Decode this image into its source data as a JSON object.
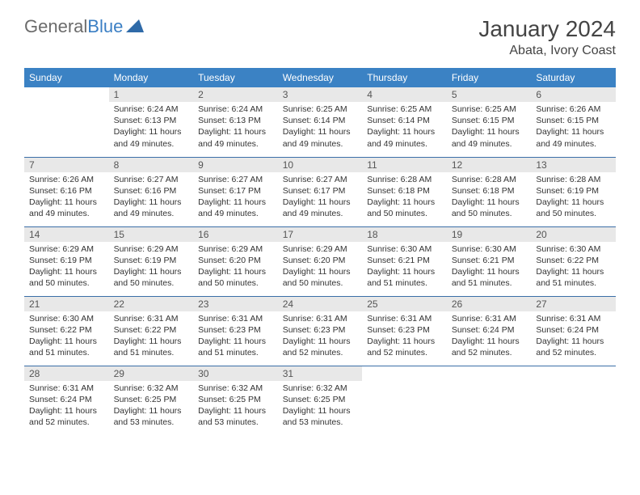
{
  "logo": {
    "part1": "General",
    "part2": "Blue"
  },
  "title": "January 2024",
  "location": "Abata, Ivory Coast",
  "header_bg": "#3b82c4",
  "header_fg": "#ffffff",
  "daynum_bg": "#e8e8e8",
  "border_color": "#3b6fa8",
  "dayNames": [
    "Sunday",
    "Monday",
    "Tuesday",
    "Wednesday",
    "Thursday",
    "Friday",
    "Saturday"
  ],
  "weeks": [
    [
      null,
      {
        "n": "1",
        "sunrise": "6:24 AM",
        "sunset": "6:13 PM",
        "daylight": "11 hours and 49 minutes."
      },
      {
        "n": "2",
        "sunrise": "6:24 AM",
        "sunset": "6:13 PM",
        "daylight": "11 hours and 49 minutes."
      },
      {
        "n": "3",
        "sunrise": "6:25 AM",
        "sunset": "6:14 PM",
        "daylight": "11 hours and 49 minutes."
      },
      {
        "n": "4",
        "sunrise": "6:25 AM",
        "sunset": "6:14 PM",
        "daylight": "11 hours and 49 minutes."
      },
      {
        "n": "5",
        "sunrise": "6:25 AM",
        "sunset": "6:15 PM",
        "daylight": "11 hours and 49 minutes."
      },
      {
        "n": "6",
        "sunrise": "6:26 AM",
        "sunset": "6:15 PM",
        "daylight": "11 hours and 49 minutes."
      }
    ],
    [
      {
        "n": "7",
        "sunrise": "6:26 AM",
        "sunset": "6:16 PM",
        "daylight": "11 hours and 49 minutes."
      },
      {
        "n": "8",
        "sunrise": "6:27 AM",
        "sunset": "6:16 PM",
        "daylight": "11 hours and 49 minutes."
      },
      {
        "n": "9",
        "sunrise": "6:27 AM",
        "sunset": "6:17 PM",
        "daylight": "11 hours and 49 minutes."
      },
      {
        "n": "10",
        "sunrise": "6:27 AM",
        "sunset": "6:17 PM",
        "daylight": "11 hours and 49 minutes."
      },
      {
        "n": "11",
        "sunrise": "6:28 AM",
        "sunset": "6:18 PM",
        "daylight": "11 hours and 50 minutes."
      },
      {
        "n": "12",
        "sunrise": "6:28 AM",
        "sunset": "6:18 PM",
        "daylight": "11 hours and 50 minutes."
      },
      {
        "n": "13",
        "sunrise": "6:28 AM",
        "sunset": "6:19 PM",
        "daylight": "11 hours and 50 minutes."
      }
    ],
    [
      {
        "n": "14",
        "sunrise": "6:29 AM",
        "sunset": "6:19 PM",
        "daylight": "11 hours and 50 minutes."
      },
      {
        "n": "15",
        "sunrise": "6:29 AM",
        "sunset": "6:19 PM",
        "daylight": "11 hours and 50 minutes."
      },
      {
        "n": "16",
        "sunrise": "6:29 AM",
        "sunset": "6:20 PM",
        "daylight": "11 hours and 50 minutes."
      },
      {
        "n": "17",
        "sunrise": "6:29 AM",
        "sunset": "6:20 PM",
        "daylight": "11 hours and 50 minutes."
      },
      {
        "n": "18",
        "sunrise": "6:30 AM",
        "sunset": "6:21 PM",
        "daylight": "11 hours and 51 minutes."
      },
      {
        "n": "19",
        "sunrise": "6:30 AM",
        "sunset": "6:21 PM",
        "daylight": "11 hours and 51 minutes."
      },
      {
        "n": "20",
        "sunrise": "6:30 AM",
        "sunset": "6:22 PM",
        "daylight": "11 hours and 51 minutes."
      }
    ],
    [
      {
        "n": "21",
        "sunrise": "6:30 AM",
        "sunset": "6:22 PM",
        "daylight": "11 hours and 51 minutes."
      },
      {
        "n": "22",
        "sunrise": "6:31 AM",
        "sunset": "6:22 PM",
        "daylight": "11 hours and 51 minutes."
      },
      {
        "n": "23",
        "sunrise": "6:31 AM",
        "sunset": "6:23 PM",
        "daylight": "11 hours and 51 minutes."
      },
      {
        "n": "24",
        "sunrise": "6:31 AM",
        "sunset": "6:23 PM",
        "daylight": "11 hours and 52 minutes."
      },
      {
        "n": "25",
        "sunrise": "6:31 AM",
        "sunset": "6:23 PM",
        "daylight": "11 hours and 52 minutes."
      },
      {
        "n": "26",
        "sunrise": "6:31 AM",
        "sunset": "6:24 PM",
        "daylight": "11 hours and 52 minutes."
      },
      {
        "n": "27",
        "sunrise": "6:31 AM",
        "sunset": "6:24 PM",
        "daylight": "11 hours and 52 minutes."
      }
    ],
    [
      {
        "n": "28",
        "sunrise": "6:31 AM",
        "sunset": "6:24 PM",
        "daylight": "11 hours and 52 minutes."
      },
      {
        "n": "29",
        "sunrise": "6:32 AM",
        "sunset": "6:25 PM",
        "daylight": "11 hours and 53 minutes."
      },
      {
        "n": "30",
        "sunrise": "6:32 AM",
        "sunset": "6:25 PM",
        "daylight": "11 hours and 53 minutes."
      },
      {
        "n": "31",
        "sunrise": "6:32 AM",
        "sunset": "6:25 PM",
        "daylight": "11 hours and 53 minutes."
      },
      null,
      null,
      null
    ]
  ],
  "labels": {
    "sunrise": "Sunrise:",
    "sunset": "Sunset:",
    "daylight": "Daylight:"
  }
}
